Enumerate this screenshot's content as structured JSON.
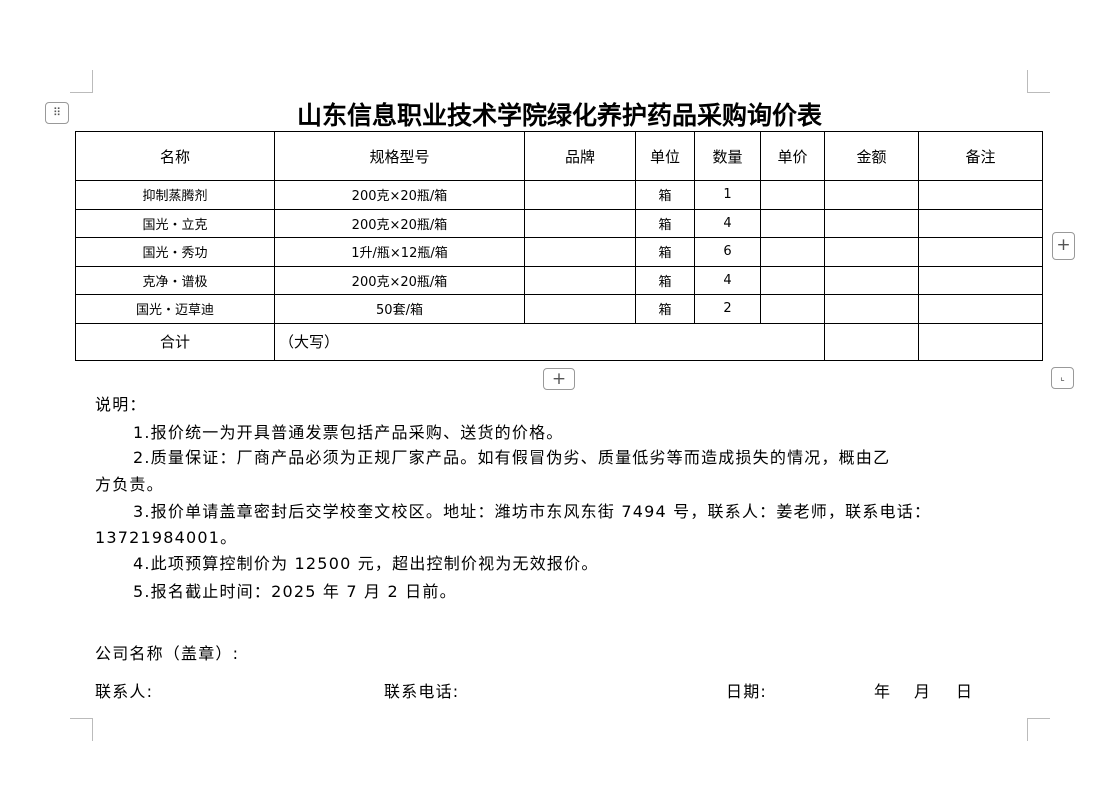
{
  "title": "山东信息职业技术学院绿化养护药品采购询价表",
  "table": {
    "headers": [
      "名称",
      "规格型号",
      "品牌",
      "单位",
      "数量",
      "单价",
      "金额",
      "备注"
    ],
    "rows": [
      {
        "name": "抑制蒸腾剂",
        "spec": "200克×20瓶/箱",
        "brand": "",
        "unit": "箱",
        "qty": "1",
        "price": "",
        "amount": "",
        "note": ""
      },
      {
        "name": "国光・立克",
        "spec": "200克×20瓶/箱",
        "brand": "",
        "unit": "箱",
        "qty": "4",
        "price": "",
        "amount": "",
        "note": ""
      },
      {
        "name": "国光・秀功",
        "spec": "1升/瓶×12瓶/箱",
        "brand": "",
        "unit": "箱",
        "qty": "6",
        "price": "",
        "amount": "",
        "note": ""
      },
      {
        "name": "克净・谱极",
        "spec": "200克×20瓶/箱",
        "brand": "",
        "unit": "箱",
        "qty": "4",
        "price": "",
        "amount": "",
        "note": ""
      },
      {
        "name": "国光・迈草迪",
        "spec": "50套/箱",
        "brand": "",
        "unit": "箱",
        "qty": "2",
        "price": "",
        "amount": "",
        "note": ""
      }
    ],
    "total_label": "合计",
    "total_capital": "（大写）"
  },
  "notes": {
    "heading": "说明：",
    "items": [
      "1.报价统一为开具普通发票包括产品采购、送货的价格。",
      "2.质量保证：厂商产品必须为正规厂家产品。如有假冒伪劣、质量低劣等而造成损失的情况，概由乙",
      "方负责。",
      "3.报价单请盖章密封后交学校奎文校区。地址：潍坊市东风东街 7494 号，联系人：姜老师，联系电话：",
      "13721984001。",
      "4.此项预算控制价为 12500 元，超出控制价视为无效报价。",
      "5.报名截止时间：2025 年 7 月 2 日前。"
    ]
  },
  "signature": {
    "company": "公司名称（盖章）:",
    "contact": "联系人:",
    "phone": "联系电话:",
    "date": "日期:",
    "year": "年",
    "month": "月",
    "day": "日"
  },
  "icons": [
    "drag-handle-icon",
    "add-column-icon",
    "add-row-icon",
    "resize-table-icon"
  ]
}
